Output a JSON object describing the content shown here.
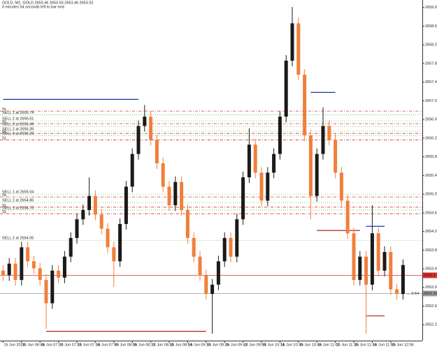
{
  "chart_data": {
    "type": "candlestick",
    "title": "GOLD, M1: GOLD 2653.46 2653.53 2653.46 2653.52",
    "subtitle": "0 minutes 54 seconds left to bar end",
    "up_color": "#1a1a1a",
    "down_color": "#f07f3c",
    "ylim": [
      2651.9,
      2659.2
    ],
    "yticks": [
      2652.24,
      2652.64,
      2653.04,
      2653.44,
      2653.84,
      2654.24,
      2654.64,
      2655.04,
      2655.44,
      2655.84,
      2656.24,
      2656.64,
      2657.04,
      2657.44,
      2657.84,
      2658.24,
      2658.64,
      2659.04
    ],
    "xtick_labels": [
      "15 Jun 2024",
      "15 Jun 06:46",
      "15 Jun 07:02",
      "15 Jun 07:18",
      "15 Jun 07:34",
      "15 Jun 07:50",
      "15 Jun 08:06",
      "15 Jun 08:22",
      "15 Jun 08:38",
      "15 Jun 08:54",
      "15 Jun 09:10",
      "15 Jun 09:26",
      "15 Jun 09:42",
      "15 Jun 09:58",
      "15 Jun 10:14",
      "15 Jun 10:30",
      "15 Jun 10:46",
      "15 Jun 11:02",
      "15 Jun 11:18",
      "15 Jun 11:34",
      "15 Jun 11:50",
      "15 Jun 12:06"
    ],
    "candles": [
      [
        2653.4,
        2653.52,
        2653.18,
        2653.3
      ],
      [
        2653.3,
        2653.67,
        2653.18,
        2653.55
      ],
      [
        2653.55,
        2653.67,
        2653.08,
        2653.2
      ],
      [
        2653.2,
        2654.02,
        2653.08,
        2653.9
      ],
      [
        2653.9,
        2654.02,
        2653.48,
        2653.6
      ],
      [
        2653.6,
        2653.72,
        2653.33,
        2653.45
      ],
      [
        2653.45,
        2653.57,
        2653.08,
        2653.2
      ],
      [
        2653.2,
        2653.32,
        2652.15,
        2652.7
      ],
      [
        2652.7,
        2653.52,
        2652.58,
        2653.4
      ],
      [
        2653.4,
        2653.52,
        2653.13,
        2653.25
      ],
      [
        2653.25,
        2653.82,
        2653.13,
        2653.7
      ],
      [
        2653.7,
        2654.22,
        2653.58,
        2654.1
      ],
      [
        2654.1,
        2654.62,
        2653.98,
        2654.5
      ],
      [
        2654.5,
        2654.82,
        2654.38,
        2654.7
      ],
      [
        2654.7,
        2655.4,
        2654.58,
        2655.0
      ],
      [
        2655.0,
        2655.12,
        2654.48,
        2654.6
      ],
      [
        2654.6,
        2654.72,
        2654.18,
        2654.3
      ],
      [
        2654.3,
        2654.42,
        2653.78,
        2653.9
      ],
      [
        2653.9,
        2654.02,
        2653.05,
        2653.6
      ],
      [
        2653.6,
        2654.52,
        2653.48,
        2654.4
      ],
      [
        2654.4,
        2655.32,
        2654.28,
        2655.2
      ],
      [
        2655.2,
        2656.02,
        2655.08,
        2655.9
      ],
      [
        2655.9,
        2656.62,
        2655.78,
        2656.5
      ],
      [
        2656.5,
        2656.95,
        2656.38,
        2656.7
      ],
      [
        2656.7,
        2656.82,
        2656.08,
        2656.2
      ],
      [
        2656.2,
        2656.32,
        2655.58,
        2655.7
      ],
      [
        2655.7,
        2655.82,
        2655.08,
        2655.2
      ],
      [
        2655.2,
        2655.32,
        2654.68,
        2654.8
      ],
      [
        2654.8,
        2655.42,
        2654.68,
        2655.3
      ],
      [
        2655.3,
        2655.42,
        2654.58,
        2654.7
      ],
      [
        2654.7,
        2654.82,
        2653.98,
        2654.1
      ],
      [
        2654.1,
        2654.22,
        2653.58,
        2653.7
      ],
      [
        2653.7,
        2653.82,
        2653.18,
        2653.3
      ],
      [
        2653.3,
        2653.42,
        2652.78,
        2652.9
      ],
      [
        2652.9,
        2653.22,
        2652.05,
        2653.1
      ],
      [
        2653.1,
        2653.72,
        2652.98,
        2653.6
      ],
      [
        2653.6,
        2654.22,
        2653.48,
        2654.1
      ],
      [
        2654.1,
        2654.22,
        2653.58,
        2653.7
      ],
      [
        2653.7,
        2654.62,
        2653.58,
        2654.5
      ],
      [
        2654.5,
        2655.52,
        2654.38,
        2655.4
      ],
      [
        2655.4,
        2656.45,
        2655.28,
        2656.1
      ],
      [
        2656.1,
        2656.22,
        2655.38,
        2655.5
      ],
      [
        2655.5,
        2655.62,
        2654.78,
        2654.9
      ],
      [
        2654.9,
        2655.62,
        2654.78,
        2655.5
      ],
      [
        2655.5,
        2656.02,
        2655.38,
        2655.9
      ],
      [
        2655.9,
        2656.82,
        2655.78,
        2656.7
      ],
      [
        2656.7,
        2658.02,
        2656.58,
        2657.9
      ],
      [
        2657.9,
        2659.05,
        2657.78,
        2658.7
      ],
      [
        2658.7,
        2658.82,
        2657.48,
        2657.6
      ],
      [
        2657.6,
        2657.72,
        2656.18,
        2656.3
      ],
      [
        2656.3,
        2656.42,
        2654.5,
        2655.0
      ],
      [
        2655.0,
        2656.02,
        2654.88,
        2655.9
      ],
      [
        2655.9,
        2656.9,
        2655.78,
        2656.5
      ],
      [
        2656.5,
        2656.62,
        2656.08,
        2656.2
      ],
      [
        2656.2,
        2656.32,
        2655.38,
        2655.5
      ],
      [
        2655.5,
        2655.62,
        2654.78,
        2654.9
      ],
      [
        2654.9,
        2655.02,
        2654.08,
        2654.2
      ],
      [
        2654.2,
        2654.32,
        2653.08,
        2653.2
      ],
      [
        2653.2,
        2653.82,
        2653.08,
        2653.7
      ],
      [
        2653.7,
        2653.82,
        2652.05,
        2653.1
      ],
      [
        2653.1,
        2654.8,
        2652.98,
        2654.2
      ],
      [
        2654.2,
        2654.32,
        2653.28,
        2653.4
      ],
      [
        2653.4,
        2653.92,
        2653.28,
        2653.8
      ],
      [
        2653.8,
        2653.92,
        2652.88,
        2653.0
      ],
      [
        2653.0,
        2653.12,
        2652.78,
        2652.9
      ],
      [
        2652.9,
        2653.64,
        2652.78,
        2653.52
      ]
    ],
    "orders": [
      {
        "label": "SELL 1 at 2656.74",
        "price": 2656.74
      },
      {
        "label": "SELL 2 at 2656.61",
        "price": 2656.61
      },
      {
        "label": "SELL 2 at 2656.49",
        "price": 2656.49
      },
      {
        "label": "SELL 2 at 2656.39",
        "price": 2656.39
      },
      {
        "label": "SELL 2 at 2656.29",
        "price": 2656.29
      },
      {
        "label": "SELL 1 at 2655.04",
        "price": 2655.04
      },
      {
        "label": "SELL 2 at 2654.86",
        "price": 2654.86
      },
      {
        "label": "SELL 1 at 2654.70",
        "price": 2654.7
      },
      {
        "label": "SELL 2 at 2654.05",
        "price": 2654.05
      }
    ],
    "order_color": "#5cbf5c",
    "stops": [
      {
        "label": "SL",
        "price": 2656.82
      },
      {
        "label": "SL",
        "price": 2656.55
      },
      {
        "label": "SL",
        "price": 2656.34
      },
      {
        "label": "SL",
        "price": 2656.2
      },
      {
        "label": "SL",
        "price": 2654.98
      },
      {
        "label": "SL",
        "price": 2654.76
      },
      {
        "label": "SL",
        "price": 2654.62
      }
    ],
    "stop_color": "#d03030",
    "segments": [
      {
        "start": 0,
        "end": 22,
        "price": 2657.07,
        "color": "#1f2fb0"
      },
      {
        "start": 50,
        "end": 54,
        "price": 2657.22,
        "color": "#1f2fb0"
      },
      {
        "start": 7,
        "end": 33,
        "price": 2652.1,
        "color": "#b02020"
      },
      {
        "start": 51,
        "end": 58,
        "price": 2654.26,
        "color": "#b02020"
      },
      {
        "start": 59,
        "end": 62,
        "price": 2652.43,
        "color": "#b02020"
      },
      {
        "start": 59,
        "end": 62,
        "price": 2654.35,
        "color": "#1f2fb0"
      }
    ],
    "price_lines": [
      {
        "value": 2653.3,
        "color": "#e03030"
      },
      {
        "value": 2652.91,
        "color": "#9a9a9a"
      }
    ],
    "annotation": "← 0.54"
  }
}
